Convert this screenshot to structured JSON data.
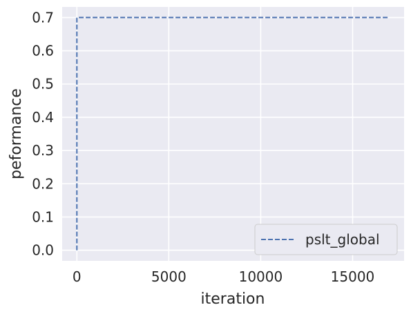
{
  "chart_data": {
    "type": "line",
    "xlabel": "iteration",
    "ylabel": "peformance",
    "xlim": [
      -800,
      17800
    ],
    "ylim": [
      -0.032,
      0.732
    ],
    "x_ticks": [
      0,
      5000,
      10000,
      15000
    ],
    "x_tick_labels": [
      "0",
      "5000",
      "10000",
      "15000"
    ],
    "y_ticks": [
      0.0,
      0.1,
      0.2,
      0.3,
      0.4,
      0.5,
      0.6,
      0.7
    ],
    "y_tick_labels": [
      "0.0",
      "0.1",
      "0.2",
      "0.3",
      "0.4",
      "0.5",
      "0.6",
      "0.7"
    ],
    "grid": true,
    "legend_position": "lower-right",
    "series": [
      {
        "name": "pslt_global",
        "color": "#4c72b0",
        "line_style": "dashed",
        "x": [
          0,
          0,
          17000
        ],
        "y": [
          0.0,
          0.7,
          0.7
        ]
      }
    ]
  }
}
